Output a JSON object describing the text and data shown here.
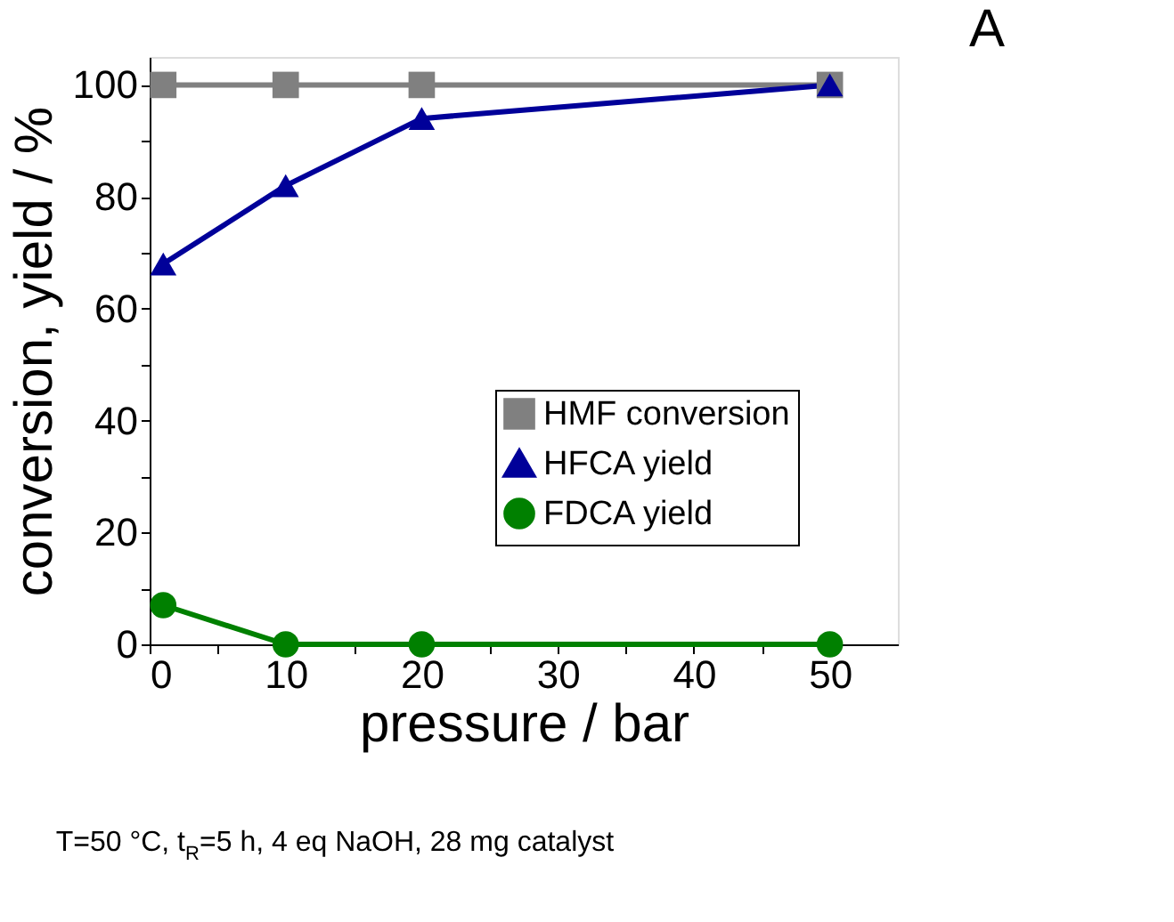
{
  "chart_data": {
    "type": "line",
    "xlabel": "pressure / bar",
    "ylabel": "conversion, yield / %",
    "x": [
      1,
      10,
      20,
      50
    ],
    "series": [
      {
        "name": "HMF conversion",
        "color": "#808080",
        "marker": "square",
        "values": [
          100,
          100,
          100,
          100
        ]
      },
      {
        "name": "HFCA yield",
        "color": "#000099",
        "marker": "triangle",
        "values": [
          68,
          82,
          94,
          100
        ]
      },
      {
        "name": "FDCA yield",
        "color": "#008000",
        "marker": "circle",
        "values": [
          7,
          0,
          0,
          0
        ]
      }
    ],
    "xlim": [
      0,
      55
    ],
    "xticks": [
      0,
      {
        "value": 5,
        "label": null
      },
      10,
      {
        "value": 15,
        "label": null
      },
      20,
      {
        "value": 25,
        "label": null
      },
      30,
      {
        "value": 35,
        "label": null
      },
      40,
      {
        "value": 45,
        "label": null
      },
      50
    ],
    "ylim": [
      0,
      105
    ],
    "yticks": [
      0,
      {
        "value": 10,
        "label": null
      },
      20,
      {
        "value": 30,
        "label": null
      },
      40,
      {
        "value": 50,
        "label": null
      },
      60,
      {
        "value": 70,
        "label": null
      },
      80,
      {
        "value": 90,
        "label": null
      },
      100
    ],
    "grid": false,
    "legend": "bottom right",
    "line_style": "solid",
    "annotations": [
      "T=50 °C, t$_{R}$=5 h, 4 eq NaOH, 28 mg catalyst",
      "A"
    ]
  }
}
